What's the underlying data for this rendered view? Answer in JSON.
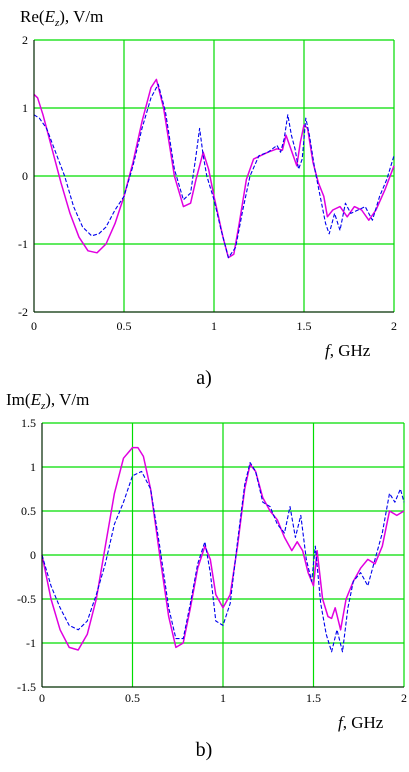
{
  "chart_data": [
    {
      "type": "line",
      "ylabel_prefix": "Re",
      "ylabel_var": "E",
      "ylabel_sub": "z",
      "ylabel_unit": ", V/m",
      "xlabel_var": "f",
      "xlabel_unit": ", GHz",
      "caption": "a)",
      "xlim": [
        0,
        2
      ],
      "ylim": [
        -2,
        2
      ],
      "x_ticks": [
        "0",
        "0.5",
        "1",
        "1.5",
        "2"
      ],
      "y_ticks": [
        "2",
        "1",
        "0",
        "-1",
        "-2"
      ],
      "x_tick_values": [
        0,
        0.5,
        1,
        1.5,
        2
      ],
      "y_tick_values": [
        2,
        1,
        0,
        -1,
        -2
      ],
      "grid": true,
      "grid_color": "#00dd00",
      "series": [
        {
          "style": "solid",
          "color": "#e000e0",
          "x": [
            0,
            0.02,
            0.05,
            0.1,
            0.15,
            0.2,
            0.25,
            0.3,
            0.35,
            0.4,
            0.45,
            0.5,
            0.55,
            0.6,
            0.65,
            0.68,
            0.72,
            0.78,
            0.83,
            0.87,
            0.9,
            0.94,
            0.97,
            1.0,
            1.05,
            1.08,
            1.11,
            1.14,
            1.18,
            1.22,
            1.26,
            1.3,
            1.35,
            1.38,
            1.4,
            1.42,
            1.44,
            1.46,
            1.48,
            1.5,
            1.52,
            1.55,
            1.58,
            1.61,
            1.63,
            1.66,
            1.7,
            1.74,
            1.78,
            1.82,
            1.86,
            1.9,
            1.95,
            2.0
          ],
          "y": [
            1.2,
            1.15,
            0.9,
            0.4,
            -0.1,
            -0.55,
            -0.9,
            -1.1,
            -1.13,
            -1.0,
            -0.7,
            -0.3,
            0.2,
            0.8,
            1.3,
            1.42,
            1.0,
            0.0,
            -0.45,
            -0.4,
            -0.05,
            0.35,
            0.1,
            -0.3,
            -0.9,
            -1.2,
            -1.15,
            -0.7,
            -0.05,
            0.25,
            0.3,
            0.35,
            0.4,
            0.38,
            0.6,
            0.45,
            0.3,
            0.15,
            0.5,
            0.75,
            0.7,
            0.2,
            -0.1,
            -0.3,
            -0.6,
            -0.5,
            -0.45,
            -0.6,
            -0.45,
            -0.5,
            -0.65,
            -0.5,
            -0.2,
            0.15
          ]
        },
        {
          "style": "dashed",
          "color": "#0000ee",
          "x": [
            0,
            0.03,
            0.07,
            0.12,
            0.17,
            0.22,
            0.27,
            0.32,
            0.36,
            0.4,
            0.45,
            0.5,
            0.55,
            0.6,
            0.65,
            0.69,
            0.73,
            0.78,
            0.83,
            0.87,
            0.9,
            0.92,
            0.94,
            0.96,
            1.0,
            1.04,
            1.08,
            1.12,
            1.16,
            1.2,
            1.25,
            1.3,
            1.35,
            1.37,
            1.39,
            1.41,
            1.43,
            1.45,
            1.47,
            1.49,
            1.51,
            1.53,
            1.56,
            1.59,
            1.62,
            1.64,
            1.67,
            1.7,
            1.73,
            1.76,
            1.8,
            1.84,
            1.88,
            1.92,
            1.96,
            2.0
          ],
          "y": [
            0.9,
            0.85,
            0.7,
            0.35,
            0.0,
            -0.45,
            -0.75,
            -0.88,
            -0.85,
            -0.75,
            -0.5,
            -0.3,
            0.15,
            0.7,
            1.15,
            1.35,
            0.95,
            0.1,
            -0.35,
            -0.25,
            0.3,
            0.7,
            0.3,
            0.0,
            -0.35,
            -0.8,
            -1.2,
            -1.05,
            -0.5,
            0.0,
            0.3,
            0.35,
            0.45,
            0.35,
            0.55,
            0.9,
            0.6,
            0.4,
            0.1,
            0.25,
            0.85,
            0.6,
            0.1,
            -0.3,
            -0.7,
            -0.85,
            -0.55,
            -0.8,
            -0.4,
            -0.55,
            -0.5,
            -0.45,
            -0.65,
            -0.3,
            -0.05,
            0.3
          ]
        }
      ]
    },
    {
      "type": "line",
      "ylabel_prefix": "Im",
      "ylabel_var": "E",
      "ylabel_sub": "z",
      "ylabel_unit": ", V/m",
      "xlabel_var": "f",
      "xlabel_unit": ", GHz",
      "caption": "b)",
      "xlim": [
        0,
        2
      ],
      "ylim": [
        -1.5,
        1.5
      ],
      "x_ticks": [
        "0",
        "0.5",
        "1",
        "1.5",
        "2"
      ],
      "y_ticks": [
        "1.5",
        "1",
        "0.5",
        "0",
        "-0.5",
        "-1",
        "-1.5"
      ],
      "x_tick_values": [
        0,
        0.5,
        1,
        1.5,
        2
      ],
      "y_tick_values": [
        1.5,
        1,
        0.5,
        0,
        -0.5,
        -1,
        -1.5
      ],
      "grid": true,
      "grid_color": "#00dd00",
      "series": [
        {
          "style": "solid",
          "color": "#e000e0",
          "x": [
            0,
            0.05,
            0.1,
            0.15,
            0.2,
            0.25,
            0.3,
            0.35,
            0.4,
            0.45,
            0.5,
            0.53,
            0.56,
            0.6,
            0.65,
            0.7,
            0.74,
            0.78,
            0.82,
            0.86,
            0.9,
            0.93,
            0.96,
            1.0,
            1.04,
            1.08,
            1.12,
            1.15,
            1.18,
            1.22,
            1.26,
            1.3,
            1.34,
            1.38,
            1.41,
            1.44,
            1.47,
            1.5,
            1.52,
            1.55,
            1.58,
            1.6,
            1.62,
            1.65,
            1.68,
            1.72,
            1.76,
            1.8,
            1.84,
            1.88,
            1.92,
            1.96,
            2.0
          ],
          "y": [
            0.0,
            -0.5,
            -0.85,
            -1.05,
            -1.08,
            -0.9,
            -0.5,
            0.1,
            0.7,
            1.1,
            1.22,
            1.22,
            1.12,
            0.75,
            0.0,
            -0.7,
            -1.05,
            -1.0,
            -0.6,
            -0.15,
            0.1,
            -0.05,
            -0.45,
            -0.6,
            -0.45,
            0.1,
            0.75,
            1.03,
            0.95,
            0.65,
            0.5,
            0.4,
            0.2,
            0.05,
            0.15,
            0.05,
            -0.2,
            -0.35,
            0.05,
            -0.5,
            -0.7,
            -0.72,
            -0.6,
            -0.85,
            -0.5,
            -0.3,
            -0.15,
            -0.05,
            -0.1,
            0.1,
            0.5,
            0.45,
            0.5
          ]
        },
        {
          "style": "dashed",
          "color": "#0000ee",
          "x": [
            0,
            0.05,
            0.1,
            0.15,
            0.2,
            0.25,
            0.3,
            0.35,
            0.4,
            0.45,
            0.5,
            0.55,
            0.6,
            0.65,
            0.7,
            0.74,
            0.78,
            0.82,
            0.86,
            0.9,
            0.93,
            0.96,
            1.0,
            1.04,
            1.08,
            1.12,
            1.15,
            1.18,
            1.22,
            1.26,
            1.3,
            1.34,
            1.37,
            1.4,
            1.43,
            1.46,
            1.49,
            1.51,
            1.54,
            1.57,
            1.6,
            1.63,
            1.66,
            1.69,
            1.72,
            1.76,
            1.8,
            1.84,
            1.88,
            1.92,
            1.95,
            1.98,
            2.0
          ],
          "y": [
            0.0,
            -0.35,
            -0.6,
            -0.8,
            -0.85,
            -0.75,
            -0.45,
            -0.1,
            0.35,
            0.6,
            0.9,
            0.95,
            0.75,
            0.1,
            -0.6,
            -0.95,
            -0.95,
            -0.55,
            -0.1,
            0.15,
            -0.2,
            -0.75,
            -0.8,
            -0.55,
            0.15,
            0.8,
            1.05,
            0.95,
            0.6,
            0.55,
            0.35,
            0.25,
            0.55,
            0.2,
            0.45,
            -0.05,
            -0.3,
            0.1,
            -0.55,
            -0.9,
            -1.1,
            -0.85,
            -1.1,
            -0.6,
            -0.3,
            -0.2,
            -0.35,
            -0.05,
            0.25,
            0.7,
            0.6,
            0.75,
            0.6
          ]
        }
      ]
    }
  ]
}
